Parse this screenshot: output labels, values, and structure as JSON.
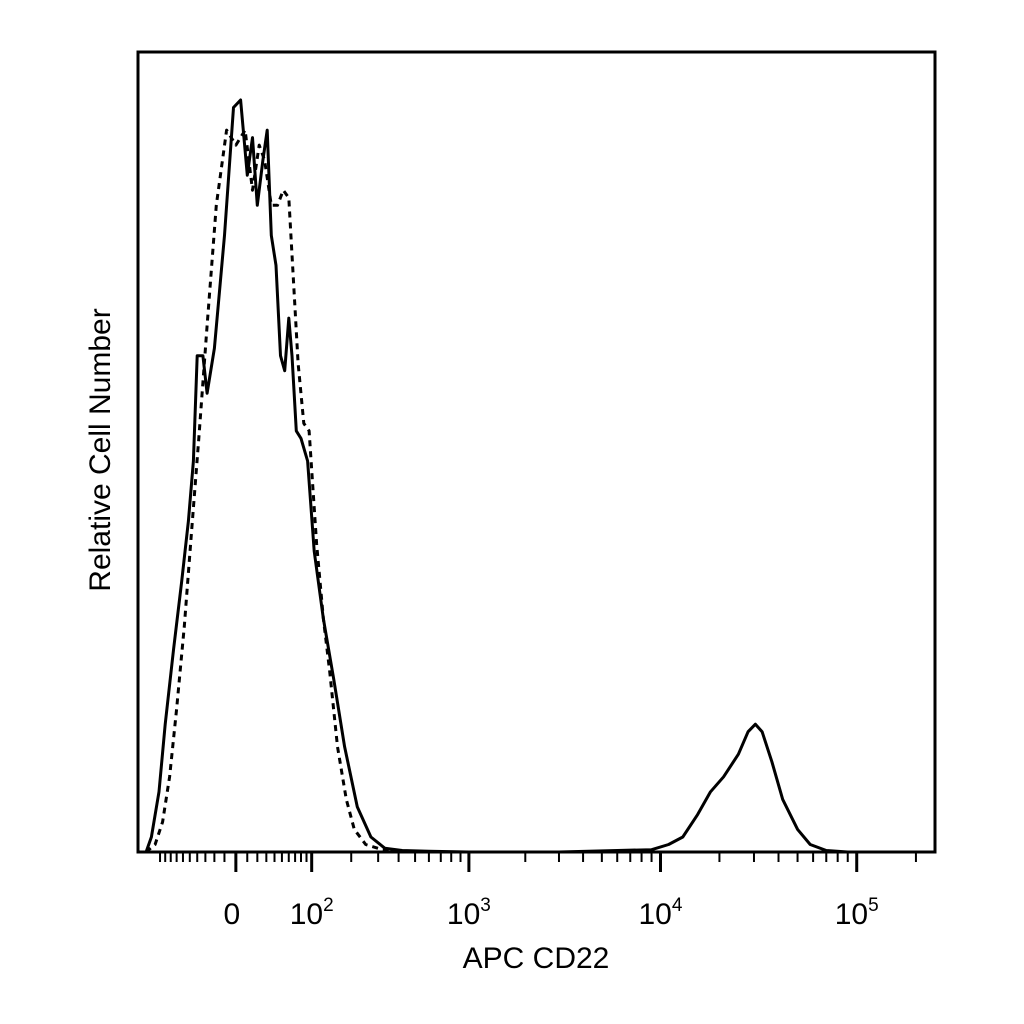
{
  "chart_data": {
    "type": "line",
    "title": "",
    "xlabel": "APC CD22",
    "ylabel": "Relative Cell Number",
    "x_scale": "biexponential (logicle)",
    "xlim": [
      -150,
      250000
    ],
    "ylim": [
      0,
      100
    ],
    "grid": false,
    "legend": "none",
    "x_tick_labels": [
      {
        "value": 0,
        "base": "0",
        "exp": ""
      },
      {
        "value": 100,
        "base": "10",
        "exp": "2"
      },
      {
        "value": 1000,
        "base": "10",
        "exp": "3"
      },
      {
        "value": 10000,
        "base": "10",
        "exp": "4"
      },
      {
        "value": 100000,
        "base": "10",
        "exp": "5"
      }
    ],
    "series": [
      {
        "style": "solid",
        "color": "#000000",
        "points": [
          [
            -130,
            0
          ],
          [
            -118,
            2
          ],
          [
            -102,
            8
          ],
          [
            -90,
            17
          ],
          [
            -75,
            27
          ],
          [
            -62,
            36
          ],
          [
            -52,
            44
          ],
          [
            -45,
            52
          ],
          [
            -40,
            66
          ],
          [
            -33,
            66
          ],
          [
            -28,
            61
          ],
          [
            -20,
            67
          ],
          [
            -10,
            82
          ],
          [
            -2,
            99
          ],
          [
            4,
            100
          ],
          [
            10,
            90
          ],
          [
            15,
            95
          ],
          [
            20,
            86
          ],
          [
            26,
            92
          ],
          [
            31,
            96
          ],
          [
            36,
            82
          ],
          [
            42,
            78
          ],
          [
            48,
            66
          ],
          [
            54,
            64
          ],
          [
            60,
            71
          ],
          [
            65,
            66
          ],
          [
            72,
            56
          ],
          [
            80,
            55
          ],
          [
            92,
            52
          ],
          [
            105,
            40
          ],
          [
            125,
            31
          ],
          [
            150,
            23
          ],
          [
            180,
            14
          ],
          [
            220,
            6
          ],
          [
            270,
            2
          ],
          [
            330,
            0.5
          ],
          [
            420,
            0.2
          ],
          [
            600,
            0.1
          ],
          [
            1000,
            0
          ],
          [
            3000,
            0
          ],
          [
            6000,
            0.2
          ],
          [
            9000,
            0.3
          ],
          [
            11000,
            1
          ],
          [
            13000,
            2
          ],
          [
            15500,
            5
          ],
          [
            18000,
            8
          ],
          [
            21000,
            10
          ],
          [
            25000,
            13
          ],
          [
            28000,
            16
          ],
          [
            30500,
            17
          ],
          [
            33000,
            16
          ],
          [
            37000,
            12
          ],
          [
            42000,
            7
          ],
          [
            50000,
            3
          ],
          [
            58000,
            1
          ],
          [
            70000,
            0.2
          ],
          [
            90000,
            0
          ]
        ]
      },
      {
        "style": "dashed",
        "color": "#000000",
        "points": [
          [
            -130,
            0
          ],
          [
            -110,
            1
          ],
          [
            -95,
            4
          ],
          [
            -82,
            10
          ],
          [
            -70,
            19
          ],
          [
            -58,
            30
          ],
          [
            -48,
            42
          ],
          [
            -38,
            55
          ],
          [
            -28,
            70
          ],
          [
            -18,
            86
          ],
          [
            -8,
            96
          ],
          [
            0,
            94
          ],
          [
            8,
            96
          ],
          [
            15,
            88
          ],
          [
            22,
            94
          ],
          [
            28,
            92
          ],
          [
            36,
            86
          ],
          [
            44,
            86
          ],
          [
            52,
            88
          ],
          [
            60,
            87
          ],
          [
            66,
            78
          ],
          [
            75,
            65
          ],
          [
            85,
            57
          ],
          [
            95,
            56
          ],
          [
            110,
            41
          ],
          [
            125,
            31
          ],
          [
            140,
            24
          ],
          [
            160,
            14
          ],
          [
            185,
            7
          ],
          [
            210,
            3
          ],
          [
            250,
            1
          ],
          [
            320,
            0.3
          ],
          [
            450,
            0
          ]
        ]
      }
    ]
  }
}
